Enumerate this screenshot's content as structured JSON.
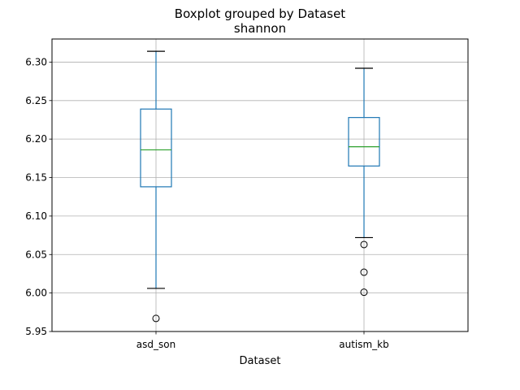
{
  "chart_data": {
    "type": "box",
    "title": "Boxplot grouped by Dataset",
    "subtitle": "shannon",
    "xlabel": "Dataset",
    "ylabel": "",
    "categories": [
      "asd_son",
      "autism_kb"
    ],
    "ylim": [
      5.95,
      6.33
    ],
    "yticks": [
      5.95,
      6.0,
      6.05,
      6.1,
      6.15,
      6.2,
      6.25,
      6.3
    ],
    "ytick_labels": [
      "5.95",
      "6.00",
      "6.05",
      "6.10",
      "6.15",
      "6.20",
      "6.25",
      "6.30"
    ],
    "grid": true,
    "boxes": [
      {
        "category": "asd_son",
        "whisker_low": 6.006,
        "q1": 6.138,
        "median": 6.186,
        "q3": 6.239,
        "whisker_high": 6.314,
        "outliers": [
          5.967
        ]
      },
      {
        "category": "autism_kb",
        "whisker_low": 6.072,
        "q1": 6.165,
        "median": 6.19,
        "q3": 6.228,
        "whisker_high": 6.292,
        "outliers": [
          6.063,
          6.027,
          6.001
        ]
      }
    ],
    "colors": {
      "box": "#1f77b4",
      "whisker": "#1f77b4",
      "median": "#2ca02c",
      "cap": "#000000",
      "grid": "#b0b0b0",
      "outlier": "#000000"
    }
  }
}
